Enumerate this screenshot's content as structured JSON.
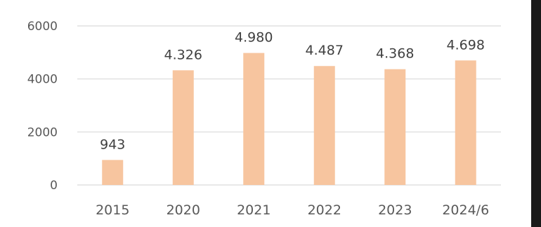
{
  "chart_data": {
    "type": "bar",
    "categories": [
      "2015",
      "2020",
      "2021",
      "2022",
      "2023",
      "2024/6"
    ],
    "values": [
      943,
      4326,
      4980,
      4487,
      4368,
      4698
    ],
    "data_labels": [
      "943",
      "4.326",
      "4.980",
      "4.487",
      "4.368",
      "4.698"
    ],
    "yticks": [
      0,
      2000,
      4000,
      6000
    ],
    "ylim": [
      0,
      6000
    ],
    "grid": true,
    "legend": "none",
    "colors": {
      "bar": "#f7c59f",
      "grid": "#d9d9d9",
      "text": "#595959"
    }
  }
}
